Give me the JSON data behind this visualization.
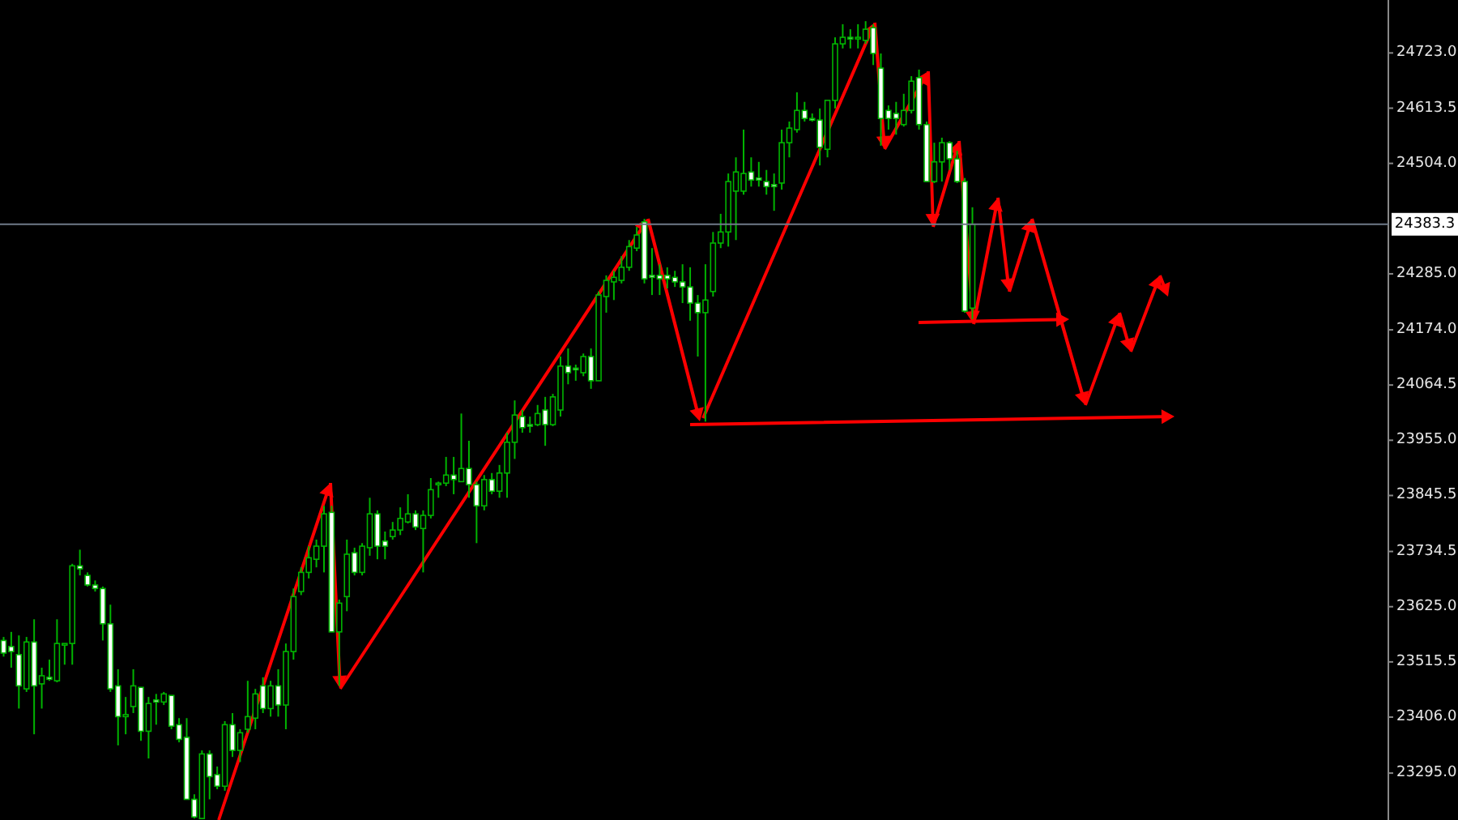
{
  "chart_data": {
    "type": "candlestick",
    "color": "#00b400",
    "categories": [
      null,
      null,
      null,
      null,
      null,
      null,
      null,
      null,
      null,
      null,
      null,
      null,
      null,
      null,
      null,
      null,
      null,
      null,
      null,
      null,
      null,
      null,
      null,
      null,
      null,
      null,
      null,
      null,
      null,
      null,
      null,
      null,
      null,
      null,
      null,
      null,
      null,
      null,
      null,
      null,
      null,
      null,
      null,
      null,
      null,
      null,
      null,
      null,
      null,
      null,
      null,
      null,
      null,
      null,
      null,
      null,
      null,
      null,
      null,
      null,
      null,
      null,
      null,
      null,
      null,
      null,
      null,
      null,
      null,
      null,
      null,
      null,
      null,
      null,
      null,
      null,
      null,
      null,
      null,
      null,
      null,
      null,
      null,
      null,
      null,
      null,
      null,
      null,
      null,
      null,
      null,
      null,
      null,
      null,
      null,
      null,
      null,
      null,
      null,
      null,
      null,
      null,
      null,
      null,
      null,
      null,
      null,
      null,
      null,
      null,
      null,
      null,
      null,
      null,
      null,
      null,
      null,
      null,
      null,
      null,
      null,
      null,
      null,
      null,
      null,
      null,
      null,
      null,
      null,
      null,
      null,
      null,
      null,
      null,
      null,
      null,
      null,
      null,
      null,
      null,
      null,
      null,
      null,
      null,
      null,
      null,
      null,
      null,
      null,
      null,
      null,
      null,
      null,
      null,
      null,
      null,
      null,
      null,
      null,
      null,
      null,
      null,
      null,
      null,
      null,
      null,
      null,
      null,
      null,
      null,
      null,
      null,
      null,
      null,
      null,
      null,
      null,
      null,
      null,
      null,
      null,
      null
    ],
    "ohlc": [
      [
        23558,
        23565,
        23526,
        23533
      ],
      [
        23546,
        23575,
        23504,
        23536
      ],
      [
        23530,
        23568,
        23423,
        23468
      ],
      [
        23462,
        23565,
        23456,
        23555
      ],
      [
        23555,
        23600,
        23372,
        23468
      ],
      [
        23472,
        23504,
        23423,
        23488
      ],
      [
        23485,
        23520,
        23478,
        23481
      ],
      [
        23478,
        23600,
        23475,
        23552
      ],
      [
        23549,
        23552,
        23510,
        23552
      ],
      [
        23552,
        23710,
        23510,
        23706
      ],
      [
        23706,
        23738,
        23687,
        23700
      ],
      [
        23687,
        23693,
        23665,
        23668
      ],
      [
        23668,
        23677,
        23655,
        23661
      ],
      [
        23661,
        23665,
        23558,
        23591
      ],
      [
        23591,
        23629,
        23456,
        23462
      ],
      [
        23468,
        23501,
        23350,
        23407
      ],
      [
        23407,
        23446,
        23372,
        23411
      ],
      [
        23427,
        23501,
        23414,
        23468
      ],
      [
        23465,
        23465,
        23359,
        23378
      ],
      [
        23378,
        23446,
        23324,
        23433
      ],
      [
        23440,
        23452,
        23391,
        23436
      ],
      [
        23436,
        23456,
        23430,
        23452
      ],
      [
        23449,
        23449,
        23382,
        23388
      ],
      [
        23391,
        23404,
        23356,
        23362
      ],
      [
        23366,
        23404,
        23243,
        23243
      ],
      [
        23243,
        23253,
        23205,
        23208
      ],
      [
        23205,
        23340,
        23205,
        23333
      ],
      [
        23333,
        23340,
        23243,
        23288
      ],
      [
        23292,
        23308,
        23263,
        23269
      ],
      [
        23269,
        23398,
        23260,
        23391
      ],
      [
        23391,
        23414,
        23327,
        23340
      ],
      [
        23340,
        23382,
        23317,
        23375
      ],
      [
        23382,
        23478,
        23375,
        23407
      ],
      [
        23404,
        23462,
        23382,
        23452
      ],
      [
        23468,
        23485,
        23414,
        23423
      ],
      [
        23423,
        23478,
        23407,
        23468
      ],
      [
        23468,
        23501,
        23407,
        23430
      ],
      [
        23430,
        23552,
        23382,
        23536
      ],
      [
        23536,
        23661,
        23520,
        23645
      ],
      [
        23655,
        23703,
        23648,
        23693
      ],
      [
        23693,
        23745,
        23681,
        23722
      ],
      [
        23719,
        23758,
        23703,
        23745
      ],
      [
        23745,
        23825,
        23693,
        23809
      ],
      [
        23812,
        23825,
        23575,
        23575
      ],
      [
        23575,
        23639,
        23468,
        23632
      ],
      [
        23645,
        23758,
        23616,
        23729
      ],
      [
        23732,
        23742,
        23687,
        23693
      ],
      [
        23693,
        23751,
        23687,
        23745
      ],
      [
        23742,
        23841,
        23726,
        23809
      ],
      [
        23809,
        23816,
        23719,
        23745
      ],
      [
        23755,
        23774,
        23719,
        23745
      ],
      [
        23764,
        23793,
        23758,
        23777
      ],
      [
        23777,
        23822,
        23767,
        23800
      ],
      [
        23793,
        23848,
        23790,
        23809
      ],
      [
        23809,
        23816,
        23777,
        23783
      ],
      [
        23780,
        23816,
        23693,
        23806
      ],
      [
        23806,
        23880,
        23800,
        23857
      ],
      [
        23870,
        23873,
        23841,
        23870
      ],
      [
        23870,
        23922,
        23864,
        23886
      ],
      [
        23886,
        23922,
        23848,
        23877
      ],
      [
        23873,
        24008,
        23873,
        23899
      ],
      [
        23899,
        23954,
        23841,
        23867
      ],
      [
        23867,
        23873,
        23751,
        23825
      ],
      [
        23825,
        23886,
        23816,
        23877
      ],
      [
        23877,
        23890,
        23848,
        23854
      ],
      [
        23854,
        23906,
        23841,
        23890
      ],
      [
        23890,
        23970,
        23841,
        23951
      ],
      [
        23951,
        24034,
        23918,
        24005
      ],
      [
        24002,
        24015,
        23970,
        23980
      ],
      [
        23986,
        24002,
        23970,
        23983
      ],
      [
        23986,
        24025,
        23983,
        24008
      ],
      [
        24015,
        24041,
        23944,
        23986
      ],
      [
        23986,
        24047,
        23983,
        24041
      ],
      [
        24015,
        24121,
        24002,
        24102
      ],
      [
        24102,
        24137,
        24066,
        24089
      ],
      [
        24098,
        24105,
        24073,
        24095
      ],
      [
        24089,
        24127,
        24082,
        24121
      ],
      [
        24121,
        24137,
        24057,
        24073
      ],
      [
        24073,
        24250,
        24073,
        24243
      ],
      [
        24240,
        24282,
        24208,
        24272
      ],
      [
        24269,
        24291,
        24233,
        24278
      ],
      [
        24272,
        24320,
        24266,
        24298
      ],
      [
        24298,
        24352,
        24291,
        24339
      ],
      [
        24336,
        24378,
        24330,
        24362
      ],
      [
        24388,
        24394,
        24266,
        24275
      ],
      [
        24282,
        24336,
        24243,
        24278
      ],
      [
        24282,
        24304,
        24243,
        24275
      ],
      [
        24282,
        24298,
        24256,
        24275
      ],
      [
        24278,
        24291,
        24259,
        24269
      ],
      [
        24269,
        24304,
        24227,
        24259
      ],
      [
        24259,
        24298,
        24192,
        24227
      ],
      [
        24227,
        24243,
        24121,
        24208
      ],
      [
        24208,
        24304,
        23992,
        24233
      ],
      [
        24250,
        24368,
        24240,
        24346
      ],
      [
        24346,
        24404,
        24336,
        24368
      ],
      [
        24368,
        24484,
        24339,
        24468
      ],
      [
        24449,
        24516,
        24352,
        24487
      ],
      [
        24449,
        24571,
        24442,
        24484
      ],
      [
        24487,
        24516,
        24458,
        24471
      ],
      [
        24475,
        24507,
        24458,
        24471
      ],
      [
        24468,
        24491,
        24442,
        24458
      ],
      [
        24462,
        24484,
        24410,
        24458
      ],
      [
        24465,
        24571,
        24452,
        24545
      ],
      [
        24545,
        24587,
        24516,
        24574
      ],
      [
        24571,
        24645,
        24565,
        24609
      ],
      [
        24609,
        24626,
        24587,
        24593
      ],
      [
        24593,
        24603,
        24587,
        24590
      ],
      [
        24590,
        24613,
        24500,
        24536
      ],
      [
        24532,
        24629,
        24516,
        24629
      ],
      [
        24629,
        24754,
        24613,
        24741
      ],
      [
        24741,
        24780,
        24732,
        24754
      ],
      [
        24754,
        24770,
        24732,
        24751
      ],
      [
        24751,
        24780,
        24732,
        24754
      ],
      [
        24748,
        24786,
        24741,
        24770
      ],
      [
        24773,
        24780,
        24699,
        24722
      ],
      [
        24693,
        24722,
        24539,
        24593
      ],
      [
        24609,
        24619,
        24571,
        24593
      ],
      [
        24603,
        24626,
        24561,
        24593
      ],
      [
        24581,
        24642,
        24577,
        24609
      ],
      [
        24609,
        24677,
        24603,
        24667
      ],
      [
        24674,
        24690,
        24571,
        24581
      ],
      [
        24581,
        24587,
        24468,
        24468
      ],
      [
        24468,
        24545,
        24465,
        24507
      ],
      [
        24507,
        24555,
        24468,
        24545
      ],
      [
        24545,
        24548,
        24491,
        24513
      ],
      [
        24513,
        24529,
        24465,
        24468
      ],
      [
        24468,
        24475,
        24208,
        24211
      ],
      [
        24217,
        24417,
        24195,
        24383.3
      ],
      null,
      null,
      null,
      null,
      null,
      null,
      null,
      null,
      null,
      null,
      null,
      null,
      null,
      null,
      null,
      null,
      null,
      null,
      null,
      null,
      null,
      null,
      null,
      null,
      null,
      null,
      null,
      null,
      null,
      null,
      null,
      null,
      null,
      null,
      null,
      null,
      null,
      null,
      null,
      null,
      null,
      null,
      null,
      null,
      null,
      null,
      null,
      null,
      null,
      null,
      null,
      null,
      null,
      null
    ],
    "ylim": [
      23202,
      24828
    ],
    "yticks": [
      {
        "value": 23295,
        "label": "23295.0"
      },
      {
        "value": 23406,
        "label": "23406.0"
      },
      {
        "value": 23515.5,
        "label": "23515.5"
      },
      {
        "value": 23625,
        "label": "23625.0"
      },
      {
        "value": 23734.5,
        "label": "23734.5"
      },
      {
        "value": 23845.5,
        "label": "23845.5"
      },
      {
        "value": 23955,
        "label": "23955.0"
      },
      {
        "value": 24064.5,
        "label": "24064.5"
      },
      {
        "value": 24174,
        "label": "24174.0"
      },
      {
        "value": 24285,
        "label": "24285.0"
      },
      {
        "value": 24504,
        "label": "24504.0"
      },
      {
        "value": 24613.5,
        "label": "24613.5"
      },
      {
        "value": 24723,
        "label": "24723.0"
      }
    ],
    "tick_labels": "y",
    "ref_lines": [
      {
        "axis": "y",
        "value": 24383.3,
        "label": "24383.3",
        "color": "#6f7a88"
      }
    ]
  }
}
